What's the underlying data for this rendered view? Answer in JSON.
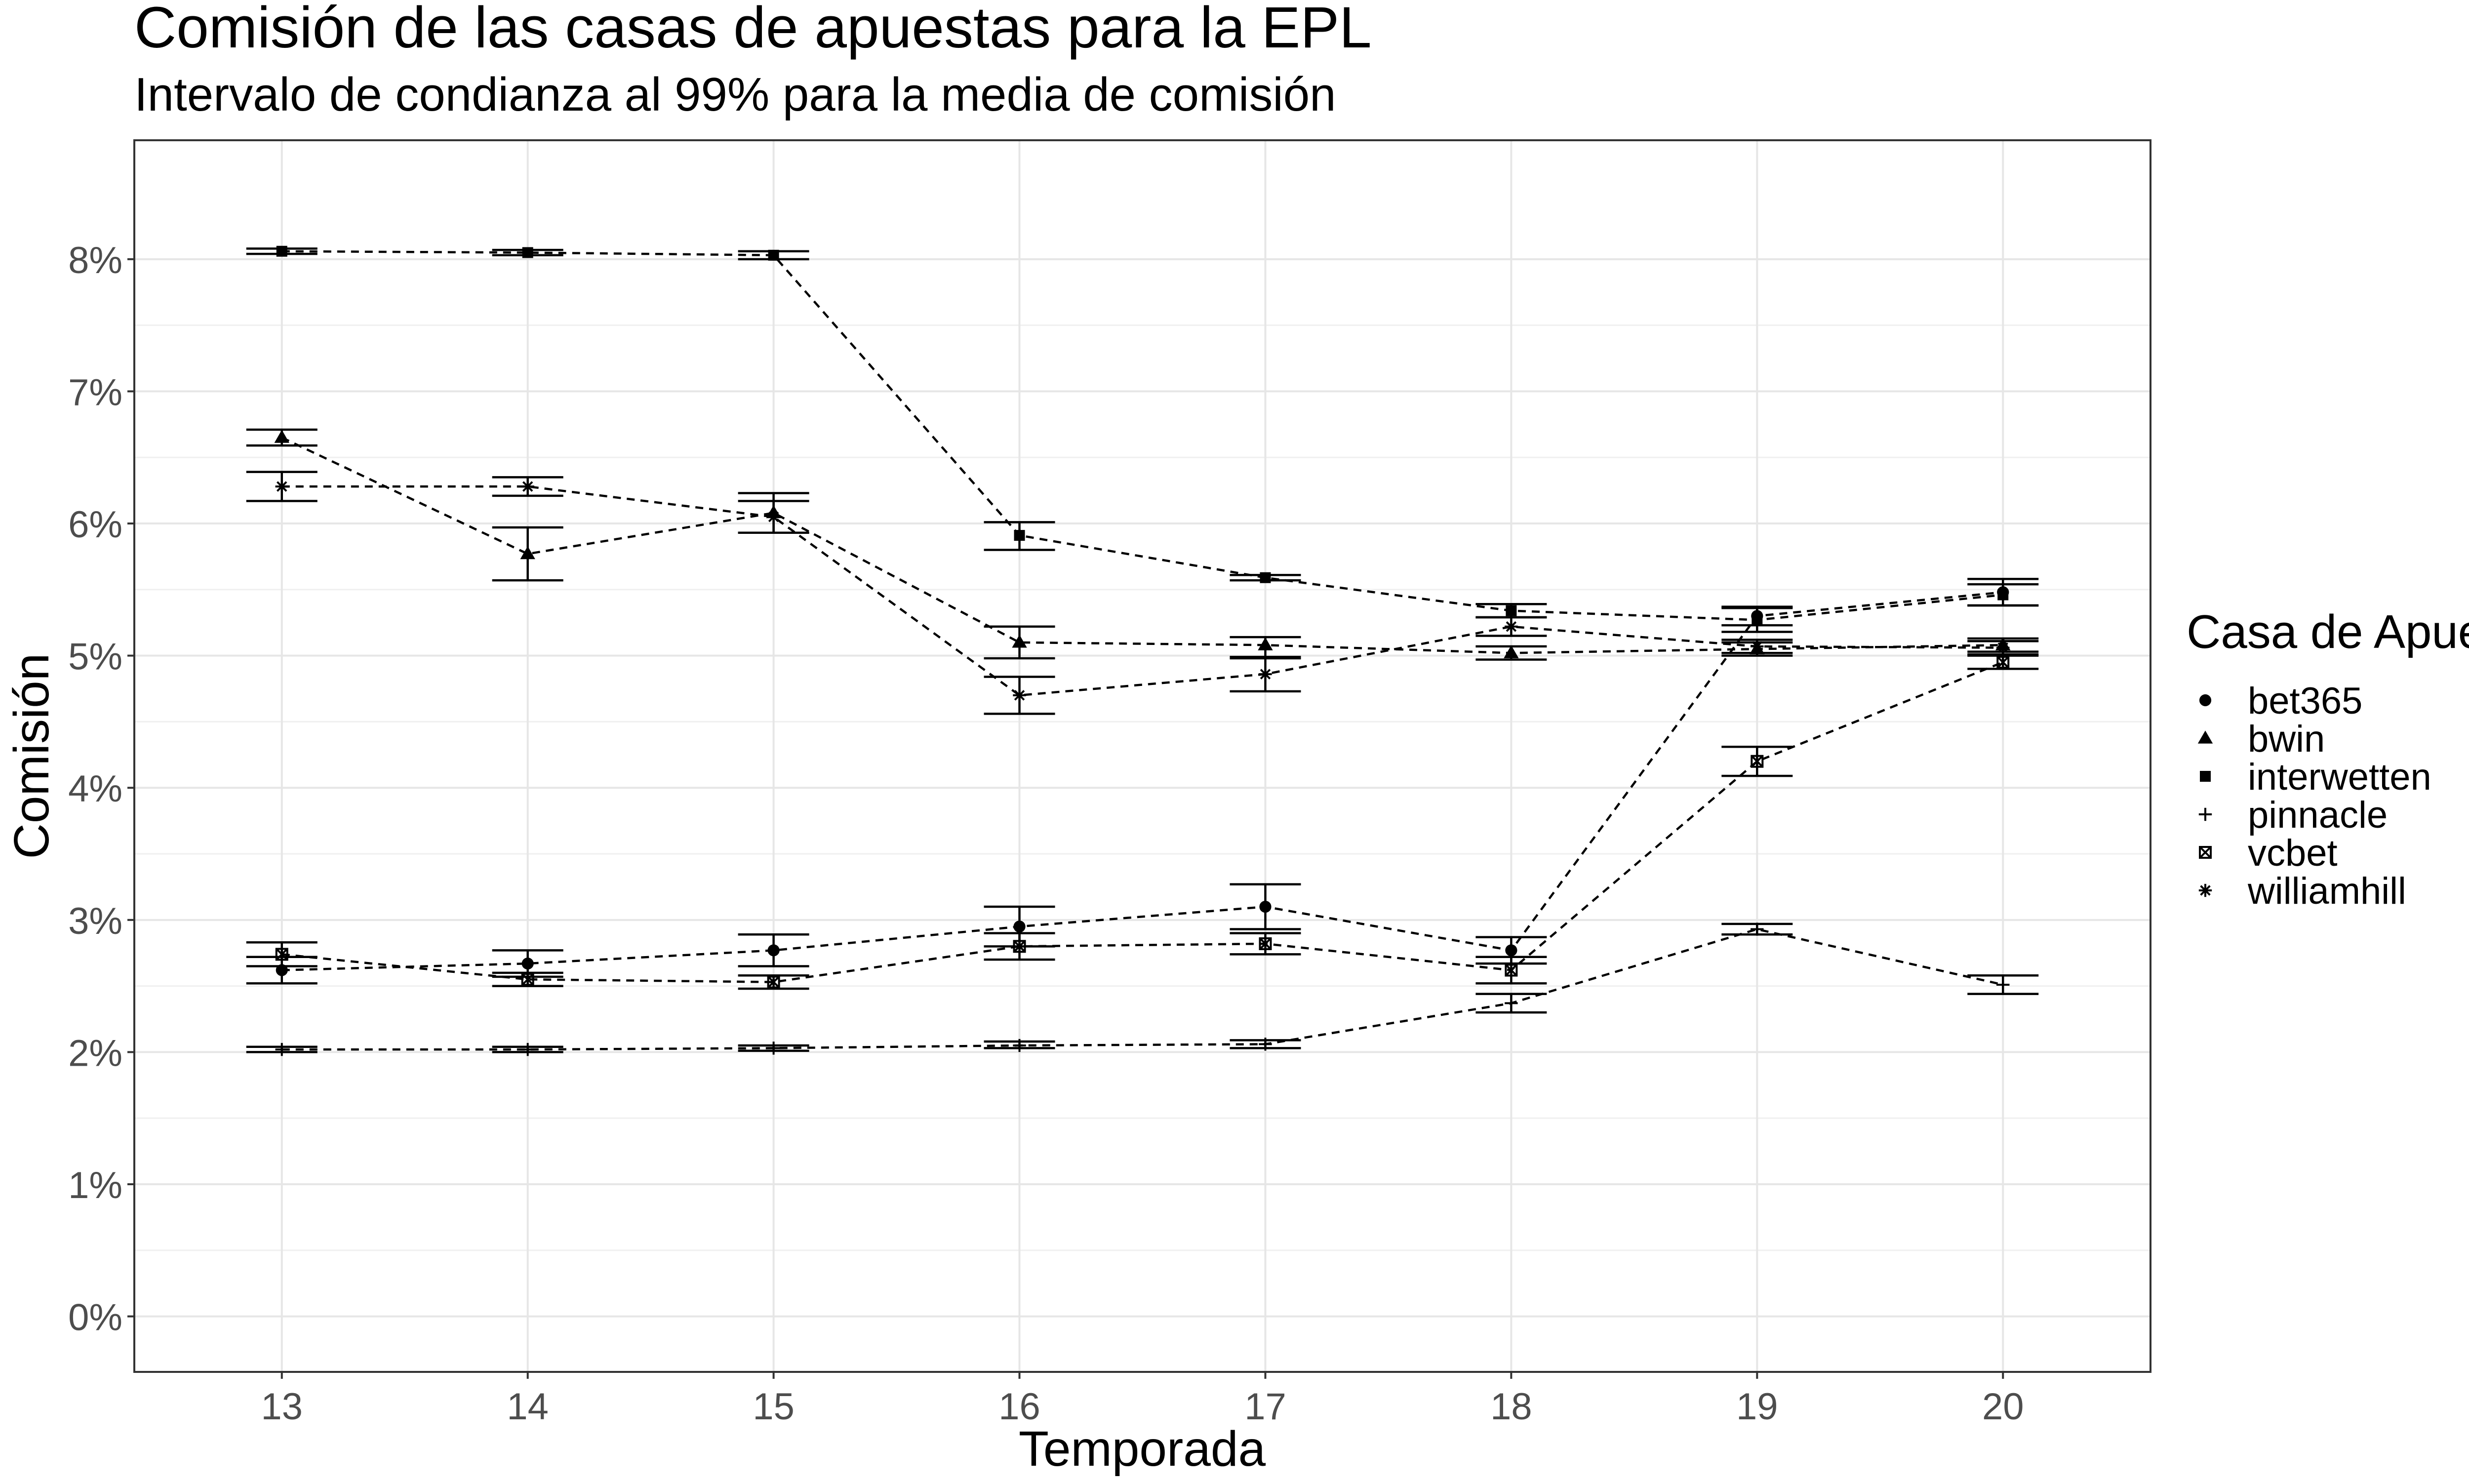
{
  "chart_data": {
    "type": "line",
    "title": "Comisión de las casas de apuestas para la EPL",
    "subtitle": "Intervalo de condianza al 99% para la media de comisión",
    "xlabel": "Temporada",
    "ylabel": "Comisión",
    "x": [
      13,
      14,
      15,
      16,
      17,
      18,
      19,
      20
    ],
    "xlim": [
      12.4,
      20.6
    ],
    "ylim": [
      -0.42,
      8.9
    ],
    "y_ticks": [
      0,
      1,
      2,
      3,
      4,
      5,
      6,
      7,
      8
    ],
    "y_tick_labels": [
      "0%",
      "1%",
      "2%",
      "3%",
      "4%",
      "5%",
      "6%",
      "7%",
      "8%"
    ],
    "grid": true,
    "line_style": "dashed",
    "legend": {
      "title": "Casa de Apuesta",
      "position": "right"
    },
    "series": [
      {
        "name": "bet365",
        "marker": "circle",
        "values": [
          null,
          null,
          null,
          null,
          null,
          null,
          null,
          null
        ],
        "segments": [
          {
            "x": [
              13,
              14,
              15,
              16,
              17,
              18,
              19,
              20
            ],
            "y": [
              2.62,
              2.67,
              2.77,
              2.95,
              3.1,
              2.77,
              5.3,
              5.48
            ]
          }
        ],
        "ci_low": [
          2.52,
          2.57,
          2.65,
          2.8,
          2.93,
          2.67,
          5.23,
          5.38
        ],
        "ci_high": [
          2.72,
          2.77,
          2.89,
          3.1,
          3.27,
          2.87,
          5.37,
          5.58
        ]
      },
      {
        "name": "bwin",
        "marker": "triangle",
        "values": [
          6.65,
          5.77,
          6.08,
          5.1,
          5.08,
          5.02,
          5.05,
          5.08
        ],
        "ci_low": [
          6.59,
          5.57,
          5.93,
          4.98,
          4.98,
          4.97,
          5.0,
          5.03
        ],
        "ci_high": [
          6.71,
          5.97,
          6.23,
          5.22,
          5.14,
          5.07,
          5.1,
          5.13
        ]
      },
      {
        "name": "interwetten",
        "marker": "square",
        "values": [
          8.06,
          8.05,
          8.03,
          5.91,
          5.59,
          5.34,
          5.27,
          5.46
        ],
        "ci_low": [
          8.04,
          8.03,
          8.0,
          5.8,
          5.57,
          5.29,
          5.18,
          5.38
        ],
        "ci_high": [
          8.08,
          8.07,
          8.06,
          6.01,
          5.61,
          5.39,
          5.36,
          5.54
        ]
      },
      {
        "name": "pinnacle",
        "marker": "plus",
        "values": [
          2.02,
          2.02,
          2.03,
          2.05,
          2.06,
          2.37,
          2.93,
          2.51
        ],
        "ci_low": [
          2.0,
          2.0,
          2.01,
          2.03,
          2.03,
          2.3,
          2.89,
          2.44
        ],
        "ci_high": [
          2.04,
          2.04,
          2.05,
          2.08,
          2.09,
          2.44,
          2.97,
          2.58
        ]
      },
      {
        "name": "vcbet",
        "marker": "square-cross",
        "values": [
          2.74,
          2.55,
          2.53,
          2.8,
          2.82,
          2.62,
          4.2,
          4.95
        ],
        "ci_low": [
          2.65,
          2.5,
          2.48,
          2.7,
          2.74,
          2.52,
          4.09,
          4.9
        ],
        "ci_high": [
          2.83,
          2.6,
          2.58,
          2.9,
          2.9,
          2.72,
          4.31,
          5.0
        ]
      },
      {
        "name": "williamhill",
        "marker": "asterisk",
        "values": [
          6.28,
          6.28,
          6.05,
          4.7,
          4.86,
          5.22,
          5.07,
          5.06
        ],
        "ci_low": [
          6.17,
          6.21,
          5.93,
          4.56,
          4.73,
          5.15,
          5.02,
          5.01
        ],
        "ci_high": [
          6.39,
          6.35,
          6.17,
          4.84,
          4.99,
          5.29,
          5.12,
          5.11
        ]
      }
    ]
  }
}
